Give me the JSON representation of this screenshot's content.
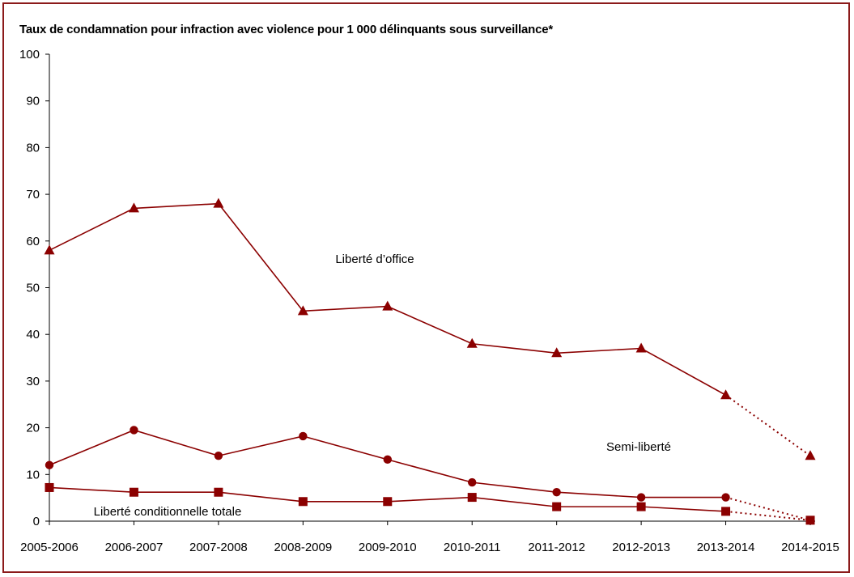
{
  "chart_data": {
    "type": "line",
    "title": "Taux de condamnation pour infraction avec violence pour 1 000 délinquants sous surveillance*",
    "xlabel": "",
    "ylabel": "",
    "ylim": [
      0,
      100
    ],
    "yticks": [
      0,
      10,
      20,
      30,
      40,
      50,
      60,
      70,
      80,
      90,
      100
    ],
    "categories": [
      "2005-2006",
      "2006-2007",
      "2007-2008",
      "2008-2009",
      "2009-2010",
      "2010-2011",
      "2011-2012",
      "2012-2013",
      "2013-2014",
      "2014-2015"
    ],
    "grid": false,
    "legend": "none",
    "dashed_last_segment": true,
    "series": [
      {
        "name": "Liberté d’office",
        "marker": "triangle",
        "color": "#8b0000",
        "values": [
          58,
          67,
          68,
          45,
          46,
          38,
          36,
          37,
          27,
          14
        ]
      },
      {
        "name": "Semi-liberté",
        "marker": "circle",
        "color": "#8b0000",
        "values": [
          12,
          19.5,
          14,
          18.2,
          13.2,
          8.3,
          6.2,
          5.1,
          5.1,
          0.2
        ]
      },
      {
        "name": "Liberté conditionnelle totale",
        "marker": "square",
        "color": "#8b0000",
        "values": [
          7.2,
          6.2,
          6.2,
          4.2,
          4.2,
          5.1,
          3.1,
          3.1,
          2.1,
          0.2
        ]
      }
    ]
  }
}
